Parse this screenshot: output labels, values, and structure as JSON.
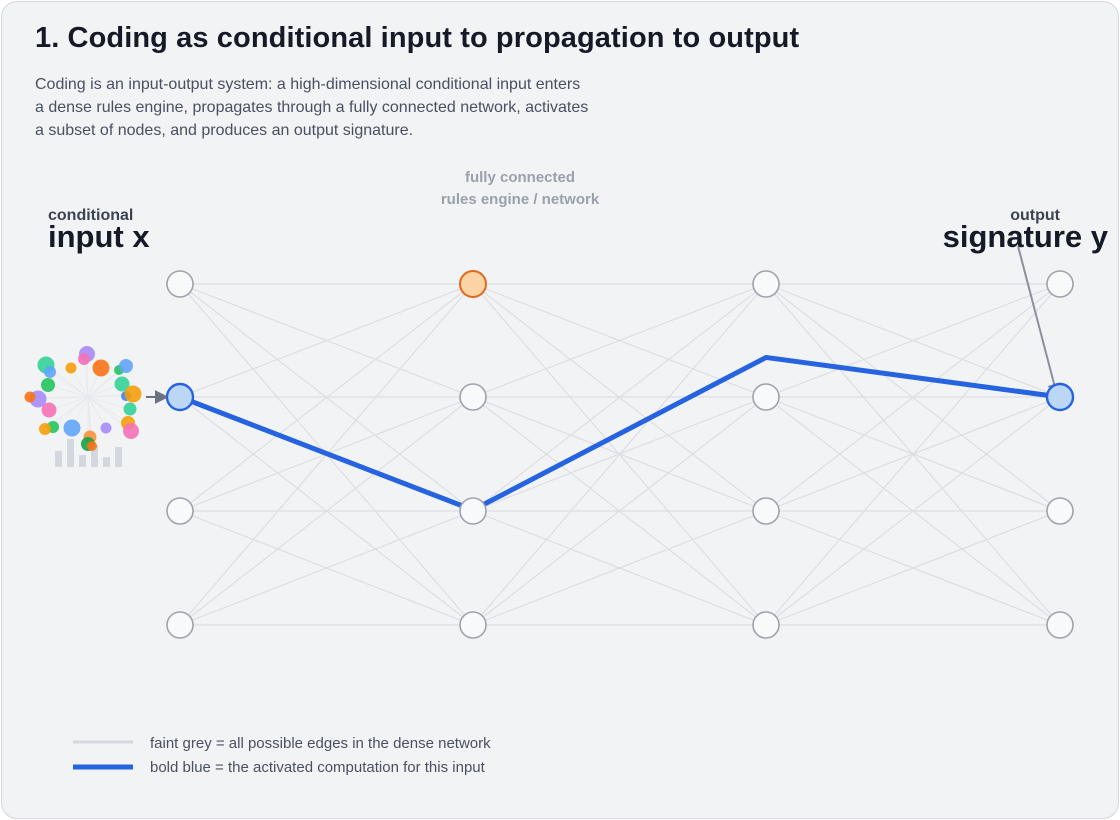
{
  "title": "1. Coding as conditional input to propagation to output",
  "description": [
    "Coding is an input-output system: a high-dimensional conditional input enters",
    "a dense rules engine, propagates through a fully connected network, activates",
    "a subset of nodes, and produces an output signature."
  ],
  "network_label": [
    "fully connected",
    "rules engine / network"
  ],
  "input_label": {
    "small": "conditional",
    "large": "input x"
  },
  "output_label": {
    "small": "output",
    "large": "signature y"
  },
  "network": {
    "layers": 4,
    "nodes_per_layer": 4,
    "active_path": [
      1,
      2,
      0.65,
      1
    ],
    "highlighted_node": {
      "layer": 1,
      "index": 0
    },
    "input_node": {
      "layer": 0,
      "index": 1
    },
    "output_node": {
      "layer": 3,
      "index": 1
    }
  },
  "legend": [
    {
      "text": "faint grey = all possible edges in the dense network",
      "style": "faint"
    },
    {
      "text": "bold blue = the activated computation for this input",
      "style": "bold"
    }
  ],
  "colors": {
    "edge_faint": "#dcdee3",
    "active_path": "#2563e0",
    "node_stroke": "#9ea3ac",
    "node_fill": "#f8f9fb",
    "active_node_fill": "#bcd6f6",
    "highlight_node_fill": "#fbd3a4",
    "highlight_node_stroke": "#e06a1b",
    "input_cluster": [
      "#34d399",
      "#60a5fa",
      "#a78bfa",
      "#f97316",
      "#f59e0b",
      "#22c55e",
      "#f472b6",
      "#3b82f6",
      "#16a34a",
      "#fb923c"
    ]
  }
}
